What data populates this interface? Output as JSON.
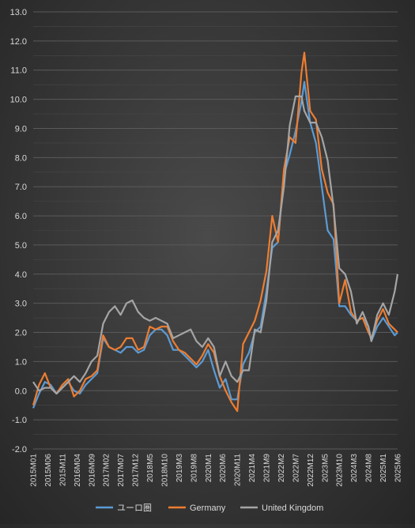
{
  "chart_data": {
    "type": "line",
    "title": "",
    "xlabel": "",
    "ylabel": "",
    "ylim": [
      -2.0,
      13.0
    ],
    "ytick_step": 1.0,
    "yticks": [
      "-2.0",
      "-1.0",
      "0.0",
      "1.0",
      "2.0",
      "3.0",
      "4.0",
      "5.0",
      "6.0",
      "7.0",
      "8.0",
      "9.0",
      "10.0",
      "11.0",
      "12.0",
      "13.0"
    ],
    "grid": true,
    "legend_position": "bottom",
    "x_start": "2015-01",
    "x_end": "2025-06",
    "xticks": [
      {
        "label": "2015M01",
        "date": "2015-01"
      },
      {
        "label": "2015M06",
        "date": "2015-06"
      },
      {
        "label": "2015M11",
        "date": "2015-11"
      },
      {
        "label": "2016M04",
        "date": "2016-04"
      },
      {
        "label": "2016M09",
        "date": "2016-09"
      },
      {
        "label": "2017M02",
        "date": "2017-02"
      },
      {
        "label": "2017M07",
        "date": "2017-07"
      },
      {
        "label": "2017M12",
        "date": "2017-12"
      },
      {
        "label": "2018M5",
        "date": "2018-05"
      },
      {
        "label": "2018M10",
        "date": "2018-10"
      },
      {
        "label": "2019M3",
        "date": "2019-03"
      },
      {
        "label": "2019M8",
        "date": "2019-08"
      },
      {
        "label": "2020M1",
        "date": "2020-01"
      },
      {
        "label": "2020M6",
        "date": "2020-06"
      },
      {
        "label": "2020M11",
        "date": "2020-11"
      },
      {
        "label": "2021M4",
        "date": "2021-04"
      },
      {
        "label": "2021M9",
        "date": "2021-09"
      },
      {
        "label": "2022M2",
        "date": "2022-02"
      },
      {
        "label": "2022M7",
        "date": "2022-07"
      },
      {
        "label": "2022M12",
        "date": "2022-12"
      },
      {
        "label": "2023M5",
        "date": "2023-05"
      },
      {
        "label": "2023M10",
        "date": "2023-10"
      },
      {
        "label": "2024M3",
        "date": "2024-03"
      },
      {
        "label": "2024M8",
        "date": "2024-08"
      },
      {
        "label": "2025M1",
        "date": "2025-01"
      },
      {
        "label": "2025M6",
        "date": "2025-06"
      }
    ],
    "series": [
      {
        "name": "ユーロ圏",
        "color": "#5b9bd5",
        "points": [
          [
            "2015-01",
            -0.6
          ],
          [
            "2015-03",
            -0.1
          ],
          [
            "2015-05",
            0.3
          ],
          [
            "2015-07",
            0.2
          ],
          [
            "2015-09",
            -0.1
          ],
          [
            "2015-11",
            0.1
          ],
          [
            "2016-01",
            0.3
          ],
          [
            "2016-03",
            0.0
          ],
          [
            "2016-05",
            -0.1
          ],
          [
            "2016-07",
            0.2
          ],
          [
            "2016-09",
            0.4
          ],
          [
            "2016-11",
            0.6
          ],
          [
            "2017-01",
            1.8
          ],
          [
            "2017-03",
            1.5
          ],
          [
            "2017-05",
            1.4
          ],
          [
            "2017-07",
            1.3
          ],
          [
            "2017-09",
            1.5
          ],
          [
            "2017-11",
            1.5
          ],
          [
            "2018-01",
            1.3
          ],
          [
            "2018-03",
            1.4
          ],
          [
            "2018-05",
            1.9
          ],
          [
            "2018-07",
            2.1
          ],
          [
            "2018-09",
            2.1
          ],
          [
            "2018-11",
            1.9
          ],
          [
            "2019-01",
            1.4
          ],
          [
            "2019-03",
            1.4
          ],
          [
            "2019-05",
            1.2
          ],
          [
            "2019-07",
            1.0
          ],
          [
            "2019-09",
            0.8
          ],
          [
            "2019-11",
            1.0
          ],
          [
            "2020-01",
            1.4
          ],
          [
            "2020-03",
            0.7
          ],
          [
            "2020-05",
            0.1
          ],
          [
            "2020-07",
            0.4
          ],
          [
            "2020-09",
            -0.3
          ],
          [
            "2020-11",
            -0.3
          ],
          [
            "2021-01",
            0.9
          ],
          [
            "2021-03",
            1.3
          ],
          [
            "2021-05",
            2.0
          ],
          [
            "2021-07",
            2.2
          ],
          [
            "2021-09",
            3.4
          ],
          [
            "2021-11",
            4.9
          ],
          [
            "2022-01",
            5.1
          ],
          [
            "2022-03",
            7.4
          ],
          [
            "2022-05",
            8.1
          ],
          [
            "2022-07",
            8.9
          ],
          [
            "2022-09",
            9.9
          ],
          [
            "2022-10",
            10.6
          ],
          [
            "2022-12",
            9.2
          ],
          [
            "2023-02",
            8.5
          ],
          [
            "2023-04",
            7.0
          ],
          [
            "2023-06",
            5.5
          ],
          [
            "2023-08",
            5.2
          ],
          [
            "2023-10",
            2.9
          ],
          [
            "2023-12",
            2.9
          ],
          [
            "2024-02",
            2.6
          ],
          [
            "2024-04",
            2.4
          ],
          [
            "2024-06",
            2.5
          ],
          [
            "2024-08",
            2.2
          ],
          [
            "2024-09",
            1.7
          ],
          [
            "2024-11",
            2.2
          ],
          [
            "2025-01",
            2.5
          ],
          [
            "2025-03",
            2.2
          ],
          [
            "2025-05",
            1.9
          ],
          [
            "2025-06",
            2.0
          ]
        ]
      },
      {
        "name": "Germany",
        "color": "#ed7d31",
        "points": [
          [
            "2015-01",
            -0.5
          ],
          [
            "2015-03",
            0.2
          ],
          [
            "2015-05",
            0.6
          ],
          [
            "2015-07",
            0.1
          ],
          [
            "2015-09",
            -0.1
          ],
          [
            "2015-11",
            0.2
          ],
          [
            "2016-01",
            0.4
          ],
          [
            "2016-03",
            -0.2
          ],
          [
            "2016-05",
            0.0
          ],
          [
            "2016-07",
            0.4
          ],
          [
            "2016-09",
            0.5
          ],
          [
            "2016-11",
            0.7
          ],
          [
            "2017-01",
            1.9
          ],
          [
            "2017-03",
            1.5
          ],
          [
            "2017-05",
            1.4
          ],
          [
            "2017-07",
            1.5
          ],
          [
            "2017-09",
            1.8
          ],
          [
            "2017-11",
            1.8
          ],
          [
            "2018-01",
            1.4
          ],
          [
            "2018-03",
            1.5
          ],
          [
            "2018-05",
            2.2
          ],
          [
            "2018-07",
            2.1
          ],
          [
            "2018-09",
            2.2
          ],
          [
            "2018-11",
            2.2
          ],
          [
            "2019-01",
            1.7
          ],
          [
            "2019-03",
            1.4
          ],
          [
            "2019-05",
            1.3
          ],
          [
            "2019-07",
            1.1
          ],
          [
            "2019-09",
            0.9
          ],
          [
            "2019-11",
            1.2
          ],
          [
            "2020-01",
            1.6
          ],
          [
            "2020-03",
            1.3
          ],
          [
            "2020-05",
            0.5
          ],
          [
            "2020-07",
            0.0
          ],
          [
            "2020-09",
            -0.4
          ],
          [
            "2020-11",
            -0.7
          ],
          [
            "2021-01",
            1.6
          ],
          [
            "2021-03",
            2.0
          ],
          [
            "2021-05",
            2.4
          ],
          [
            "2021-07",
            3.1
          ],
          [
            "2021-09",
            4.1
          ],
          [
            "2021-11",
            6.0
          ],
          [
            "2022-01",
            5.1
          ],
          [
            "2022-03",
            7.6
          ],
          [
            "2022-05",
            8.7
          ],
          [
            "2022-07",
            8.5
          ],
          [
            "2022-09",
            10.9
          ],
          [
            "2022-10",
            11.6
          ],
          [
            "2022-12",
            9.6
          ],
          [
            "2023-02",
            9.3
          ],
          [
            "2023-04",
            7.6
          ],
          [
            "2023-06",
            6.8
          ],
          [
            "2023-08",
            6.4
          ],
          [
            "2023-10",
            3.0
          ],
          [
            "2023-12",
            3.8
          ],
          [
            "2024-02",
            2.7
          ],
          [
            "2024-04",
            2.4
          ],
          [
            "2024-06",
            2.5
          ],
          [
            "2024-08",
            2.0
          ],
          [
            "2024-09",
            1.8
          ],
          [
            "2024-11",
            2.4
          ],
          [
            "2025-01",
            2.8
          ],
          [
            "2025-03",
            2.3
          ],
          [
            "2025-05",
            2.1
          ],
          [
            "2025-06",
            2.0
          ]
        ]
      },
      {
        "name": "United Kingdom",
        "color": "#a5a5a5",
        "points": [
          [
            "2015-01",
            0.3
          ],
          [
            "2015-03",
            0.0
          ],
          [
            "2015-05",
            0.1
          ],
          [
            "2015-07",
            0.1
          ],
          [
            "2015-09",
            -0.1
          ],
          [
            "2015-11",
            0.1
          ],
          [
            "2016-01",
            0.3
          ],
          [
            "2016-03",
            0.5
          ],
          [
            "2016-05",
            0.3
          ],
          [
            "2016-07",
            0.6
          ],
          [
            "2016-09",
            1.0
          ],
          [
            "2016-11",
            1.2
          ],
          [
            "2017-01",
            2.3
          ],
          [
            "2017-03",
            2.7
          ],
          [
            "2017-05",
            2.9
          ],
          [
            "2017-07",
            2.6
          ],
          [
            "2017-09",
            3.0
          ],
          [
            "2017-11",
            3.1
          ],
          [
            "2018-01",
            2.7
          ],
          [
            "2018-03",
            2.5
          ],
          [
            "2018-05",
            2.4
          ],
          [
            "2018-07",
            2.5
          ],
          [
            "2018-09",
            2.4
          ],
          [
            "2018-11",
            2.3
          ],
          [
            "2019-01",
            1.8
          ],
          [
            "2019-03",
            1.9
          ],
          [
            "2019-05",
            2.0
          ],
          [
            "2019-07",
            2.1
          ],
          [
            "2019-09",
            1.7
          ],
          [
            "2019-11",
            1.5
          ],
          [
            "2020-01",
            1.8
          ],
          [
            "2020-03",
            1.5
          ],
          [
            "2020-05",
            0.5
          ],
          [
            "2020-07",
            1.0
          ],
          [
            "2020-09",
            0.5
          ],
          [
            "2020-11",
            0.3
          ],
          [
            "2021-01",
            0.7
          ],
          [
            "2021-03",
            0.7
          ],
          [
            "2021-05",
            2.1
          ],
          [
            "2021-07",
            2.0
          ],
          [
            "2021-09",
            3.1
          ],
          [
            "2021-11",
            5.1
          ],
          [
            "2022-01",
            5.5
          ],
          [
            "2022-03",
            7.0
          ],
          [
            "2022-05",
            9.1
          ],
          [
            "2022-07",
            10.1
          ],
          [
            "2022-09",
            10.1
          ],
          [
            "2022-10",
            9.6
          ],
          [
            "2022-12",
            9.2
          ],
          [
            "2023-02",
            9.2
          ],
          [
            "2023-04",
            8.7
          ],
          [
            "2023-06",
            7.9
          ],
          [
            "2023-08",
            6.3
          ],
          [
            "2023-10",
            4.2
          ],
          [
            "2023-12",
            4.0
          ],
          [
            "2024-02",
            3.4
          ],
          [
            "2024-04",
            2.3
          ],
          [
            "2024-06",
            2.7
          ],
          [
            "2024-08",
            2.2
          ],
          [
            "2024-09",
            1.7
          ],
          [
            "2024-11",
            2.6
          ],
          [
            "2025-01",
            3.0
          ],
          [
            "2025-03",
            2.6
          ],
          [
            "2025-05",
            3.4
          ],
          [
            "2025-06",
            4.0
          ]
        ]
      }
    ]
  }
}
